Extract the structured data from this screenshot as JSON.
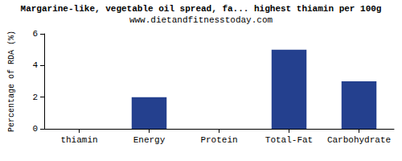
{
  "chart_data": {
    "type": "bar",
    "title": "Margarine-like, vegetable oil spread, fa... highest thiamin per 100g",
    "subtitle": "www.dietandfitnesstoday.com",
    "ylabel": "Percentage of RDA (%)",
    "categories": [
      "thiamin",
      "Energy",
      "Protein",
      "Total-Fat",
      "Carbohydrate"
    ],
    "values": [
      0,
      2,
      0,
      5,
      3
    ],
    "color": "#24408e",
    "ylim": [
      0,
      6
    ],
    "yticks": [
      0,
      2,
      4,
      6
    ],
    "grid": false
  }
}
